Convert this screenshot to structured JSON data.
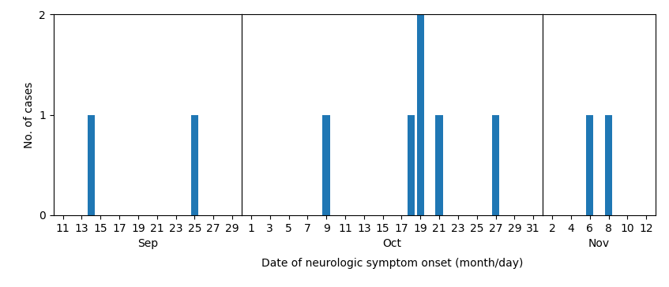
{
  "chart_data": [
    {
      "type": "bar",
      "annotations": [
        "Sep"
      ],
      "ylabel": "No. of cases",
      "x": [
        14,
        25
      ],
      "values": [
        1,
        1
      ],
      "xlim": [
        10,
        30
      ],
      "xticks": [
        11,
        13,
        15,
        17,
        19,
        21,
        23,
        25,
        27,
        29
      ],
      "ylim": [
        0,
        2
      ],
      "yticks": [
        0,
        1,
        2
      ]
    },
    {
      "type": "bar",
      "annotations": [
        "Oct"
      ],
      "xlabel": "Date of neurologic symptom onset (month/day)",
      "x": [
        9,
        18,
        19,
        21,
        27
      ],
      "values": [
        1,
        1,
        2,
        1,
        1
      ],
      "xlim": [
        0,
        32
      ],
      "xticks": [
        1,
        3,
        5,
        7,
        9,
        11,
        13,
        15,
        17,
        19,
        21,
        23,
        25,
        27,
        29,
        31
      ],
      "ylim": [
        0,
        2
      ],
      "tick_labels": "x"
    },
    {
      "type": "bar",
      "annotations": [
        "Nov"
      ],
      "x": [
        6,
        8
      ],
      "values": [
        1,
        1
      ],
      "xlim": [
        1,
        13
      ],
      "xticks": [
        2,
        4,
        6,
        8,
        10,
        12
      ],
      "ylim": [
        0,
        2
      ],
      "tick_labels": "x"
    }
  ]
}
